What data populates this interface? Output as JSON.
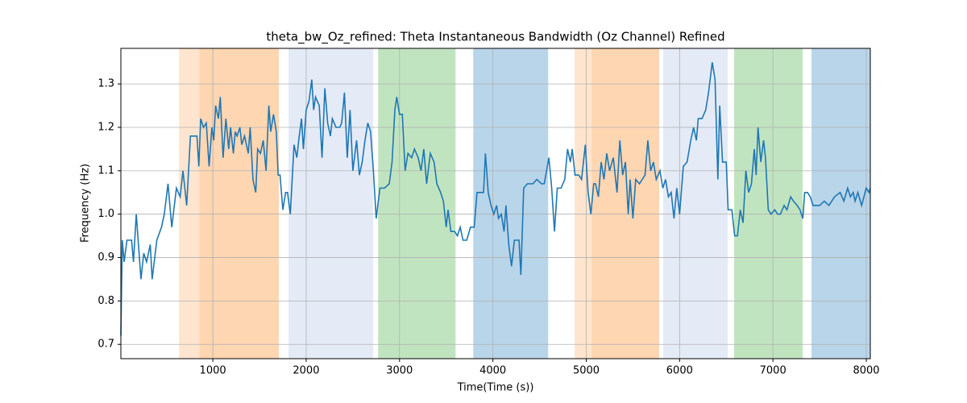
{
  "chart_data": {
    "type": "line",
    "title": "theta_bw_Oz_refined: Theta Instantaneous Bandwidth (Oz Channel) Refined",
    "x_label": "Time(Time (s))",
    "y_label": "Frequency (Hz)",
    "xlim": [
      15,
      8043
    ],
    "ylim": [
      0.667,
      1.382
    ],
    "xticks": [
      1000,
      2000,
      3000,
      4000,
      5000,
      6000,
      7000,
      8000
    ],
    "yticks": [
      0.7,
      0.8,
      0.9,
      {
        "value": 1,
        "label": "1.0"
      },
      1.1,
      1.2,
      1.3
    ],
    "grid": true,
    "bands": [
      {
        "start": 638,
        "end": 854,
        "color": "#ffe5cf"
      },
      {
        "start": 854,
        "end": 1708,
        "color": "#fed6b2"
      },
      {
        "start": 1811,
        "end": 2718,
        "color": "#e4ebf7"
      },
      {
        "start": 2770,
        "end": 3600,
        "color": "#c1e4c0"
      },
      {
        "start": 3790,
        "end": 4592,
        "color": "#b9d5ea"
      },
      {
        "start": 4876,
        "end": 5057,
        "color": "#ffe5cf"
      },
      {
        "start": 5057,
        "end": 5782,
        "color": "#fed6b2"
      },
      {
        "start": 5825,
        "end": 6516,
        "color": "#e4ebf7"
      },
      {
        "start": 6584,
        "end": 7318,
        "color": "#c1e4c0"
      },
      {
        "start": 7413,
        "end": 8043,
        "color": "#b9d5ea"
      }
    ],
    "x": [
      15,
      30,
      50,
      80,
      130,
      150,
      180,
      230,
      260,
      290,
      330,
      350,
      400,
      450,
      480,
      520,
      560,
      610,
      650,
      680,
      720,
      760,
      830,
      850,
      870,
      900,
      930,
      960,
      990,
      1010,
      1030,
      1060,
      1080,
      1110,
      1140,
      1170,
      1190,
      1220,
      1240,
      1260,
      1290,
      1310,
      1340,
      1380,
      1400,
      1430,
      1460,
      1480,
      1510,
      1540,
      1570,
      1600,
      1620,
      1650,
      1680,
      1700,
      1720,
      1750,
      1780,
      1800,
      1830,
      1870,
      1900,
      1920,
      1950,
      1970,
      2000,
      2030,
      2060,
      2080,
      2100,
      2140,
      2170,
      2200,
      2230,
      2260,
      2280,
      2320,
      2360,
      2380,
      2410,
      2440,
      2470,
      2500,
      2540,
      2570,
      2600,
      2630,
      2660,
      2690,
      2720,
      2750,
      2790,
      2840,
      2890,
      2920,
      2950,
      2970,
      3000,
      3030,
      3060,
      3090,
      3130,
      3160,
      3200,
      3230,
      3260,
      3290,
      3330,
      3370,
      3400,
      3440,
      3470,
      3500,
      3520,
      3550,
      3590,
      3620,
      3650,
      3680,
      3720,
      3760,
      3800,
      3830,
      3900,
      3920,
      3950,
      3980,
      4010,
      4040,
      4060,
      4090,
      4120,
      4140,
      4170,
      4200,
      4230,
      4280,
      4300,
      4330,
      4370,
      4430,
      4470,
      4520,
      4550,
      4600,
      4630,
      4660,
      4690,
      4730,
      4770,
      4800,
      4830,
      4850,
      4880,
      4920,
      4950,
      4990,
      5020,
      5050,
      5080,
      5100,
      5130,
      5160,
      5190,
      5220,
      5250,
      5290,
      5330,
      5360,
      5390,
      5420,
      5450,
      5470,
      5500,
      5530,
      5570,
      5600,
      5630,
      5660,
      5690,
      5720,
      5750,
      5790,
      5820,
      5850,
      5880,
      5910,
      5940,
      5970,
      6000,
      6040,
      6080,
      6120,
      6150,
      6180,
      6200,
      6240,
      6280,
      6310,
      6350,
      6380,
      6410,
      6430,
      6460,
      6500,
      6520,
      6560,
      6590,
      6620,
      6650,
      6680,
      6710,
      6740,
      6770,
      6800,
      6820,
      6840,
      6870,
      6900,
      6920,
      6950,
      6980,
      7020,
      7050,
      7080,
      7120,
      7150,
      7190,
      7220,
      7260,
      7290,
      7320,
      7340,
      7370,
      7400,
      7430,
      7500,
      7550,
      7600,
      7660,
      7720,
      7760,
      7800,
      7830,
      7860,
      7880,
      7910,
      7950,
      8000,
      8030,
      8043
    ],
    "series": [
      {
        "name": "theta_bw_Oz_refined",
        "color": "#1f77b4",
        "values": [
          0.72,
          0.94,
          0.89,
          0.94,
          0.94,
          0.89,
          1.0,
          0.85,
          0.91,
          0.89,
          0.93,
          0.85,
          0.94,
          0.97,
          1.0,
          1.07,
          0.97,
          1.06,
          1.04,
          1.1,
          1.02,
          1.18,
          1.18,
          1.11,
          1.22,
          1.2,
          1.21,
          1.11,
          1.2,
          1.17,
          1.25,
          1.22,
          1.27,
          1.13,
          1.22,
          1.15,
          1.2,
          1.14,
          1.19,
          1.18,
          1.2,
          1.16,
          1.18,
          1.14,
          1.2,
          1.08,
          1.05,
          1.15,
          1.14,
          1.17,
          1.1,
          1.25,
          1.19,
          1.23,
          1.19,
          1.09,
          1.09,
          1.01,
          1.05,
          1.05,
          1.0,
          1.16,
          1.13,
          1.17,
          1.22,
          1.15,
          1.24,
          1.26,
          1.31,
          1.24,
          1.27,
          1.25,
          1.13,
          1.29,
          1.21,
          1.18,
          1.22,
          1.2,
          1.2,
          1.21,
          1.28,
          1.13,
          1.24,
          1.1,
          1.17,
          1.09,
          1.12,
          1.17,
          1.21,
          1.19,
          1.1,
          0.99,
          1.06,
          1.06,
          1.07,
          1.12,
          1.24,
          1.27,
          1.23,
          1.23,
          1.1,
          1.14,
          1.13,
          1.15,
          1.13,
          1.1,
          1.15,
          1.07,
          1.14,
          1.12,
          1.07,
          1.05,
          1.03,
          0.97,
          1.01,
          0.96,
          0.96,
          0.95,
          0.97,
          0.94,
          0.94,
          0.97,
          0.97,
          1.05,
          1.05,
          1.14,
          1.05,
          1.02,
          1.0,
          1.02,
          0.99,
          1.0,
          0.96,
          1.02,
          0.93,
          0.88,
          0.94,
          0.94,
          0.86,
          1.06,
          1.07,
          1.07,
          1.08,
          1.07,
          1.07,
          1.13,
          1.06,
          0.96,
          1.06,
          1.06,
          1.08,
          1.15,
          1.12,
          1.15,
          1.09,
          1.09,
          1.08,
          1.16,
          1.05,
          1.0,
          1.07,
          1.07,
          1.04,
          1.12,
          1.08,
          1.14,
          1.1,
          1.13,
          1.05,
          1.17,
          1.09,
          1.12,
          1.0,
          1.08,
          0.99,
          1.08,
          1.07,
          1.08,
          1.09,
          1.17,
          1.1,
          1.12,
          1.08,
          1.1,
          1.06,
          1.08,
          1.04,
          1.05,
          0.99,
          1.06,
          1.0,
          1.11,
          1.12,
          1.17,
          1.2,
          1.17,
          1.22,
          1.22,
          1.24,
          1.28,
          1.35,
          1.31,
          1.08,
          1.25,
          1.12,
          1.12,
          1.01,
          1.01,
          0.95,
          0.95,
          1.01,
          0.98,
          1.1,
          1.05,
          1.07,
          1.15,
          1.09,
          1.2,
          1.12,
          1.17,
          1.13,
          1.01,
          1.0,
          1.01,
          1.0,
          1.0,
          1.02,
          1.01,
          1.04,
          1.03,
          1.02,
          1.01,
          0.99,
          1.05,
          1.05,
          1.04,
          1.02,
          1.02,
          1.03,
          1.02,
          1.04,
          1.05,
          1.03,
          1.06,
          1.04,
          1.05,
          1.03,
          1.05,
          1.02,
          1.06,
          1.05,
          1.06
        ]
      }
    ]
  }
}
